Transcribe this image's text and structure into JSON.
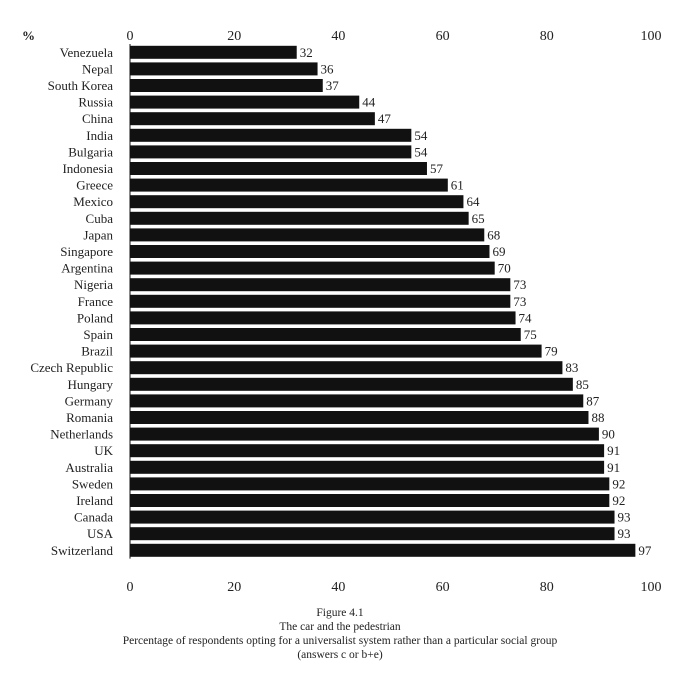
{
  "chart_data": {
    "type": "bar",
    "orientation": "horizontal",
    "unit_label": "%",
    "categories": [
      "Venezuela",
      "Nepal",
      "South Korea",
      "Russia",
      "China",
      "India",
      "Bulgaria",
      "Indonesia",
      "Greece",
      "Mexico",
      "Cuba",
      "Japan",
      "Singapore",
      "Argentina",
      "Nigeria",
      "France",
      "Poland",
      "Spain",
      "Brazil",
      "Czech Republic",
      "Hungary",
      "Germany",
      "Romania",
      "Netherlands",
      "UK",
      "Australia",
      "Sweden",
      "Ireland",
      "Canada",
      "USA",
      "Switzerland"
    ],
    "values": [
      32,
      36,
      37,
      44,
      47,
      54,
      54,
      57,
      61,
      64,
      65,
      68,
      69,
      70,
      73,
      73,
      74,
      75,
      79,
      83,
      85,
      87,
      88,
      90,
      91,
      91,
      92,
      92,
      93,
      93,
      97
    ],
    "xlim": [
      0,
      100
    ],
    "xticks": [
      0,
      20,
      40,
      60,
      80,
      100
    ],
    "bar_color": "#111111",
    "grid": false
  },
  "caption": {
    "figure_label": "Figure 4.1",
    "title": "The car and the pedestrian",
    "subtitle": "Percentage of respondents opting for a universalist system rather than a particular social group",
    "note": "(answers c or b+e)"
  }
}
